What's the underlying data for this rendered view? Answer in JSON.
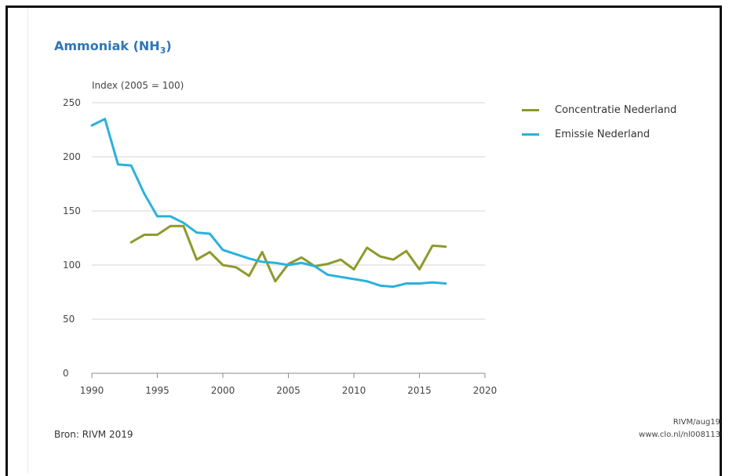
{
  "title": {
    "main": "Ammoniak (NH",
    "sub": "3",
    "close": ")"
  },
  "source_note": "Bron: RIVM 2019",
  "credit": {
    "line1": "RIVM/aug19",
    "line2": "www.clo.nl/nl008113"
  },
  "colors": {
    "concentratie": "#8d9a2b",
    "emissie": "#2bb1db",
    "grid": "#e3e3e3"
  },
  "chart_data": {
    "type": "line",
    "ylabel": "Index (2005 = 100)",
    "xlabel": "",
    "xlim": [
      1990,
      2020
    ],
    "ylim": [
      0,
      250
    ],
    "xticks": [
      1990,
      1995,
      2000,
      2005,
      2010,
      2015,
      2020
    ],
    "yticks": [
      0,
      50,
      100,
      150,
      200,
      250
    ],
    "grid": true,
    "legend_position": "right",
    "series": [
      {
        "name": "Concentratie Nederland",
        "color": "#8d9a2b",
        "x": [
          1993,
          1994,
          1995,
          1996,
          1997,
          1998,
          1999,
          2000,
          2001,
          2002,
          2003,
          2004,
          2005,
          2006,
          2007,
          2008,
          2009,
          2010,
          2011,
          2012,
          2013,
          2014,
          2015,
          2016,
          2017
        ],
        "y": [
          121,
          128,
          128,
          136,
          136,
          105,
          112,
          100,
          98,
          90,
          112,
          85,
          101,
          107,
          99,
          101,
          105,
          96,
          116,
          108,
          105,
          113,
          96,
          118,
          117
        ]
      },
      {
        "name": "Emissie Nederland",
        "color": "#2bb1db",
        "x": [
          1990,
          1991,
          1992,
          1993,
          1994,
          1995,
          1996,
          1997,
          1998,
          1999,
          2000,
          2001,
          2002,
          2003,
          2004,
          2005,
          2006,
          2007,
          2008,
          2009,
          2010,
          2011,
          2012,
          2013,
          2014,
          2015,
          2016,
          2017
        ],
        "y": [
          229,
          235,
          193,
          192,
          166,
          145,
          145,
          139,
          130,
          129,
          114,
          110,
          106,
          103,
          102,
          100,
          102,
          99,
          91,
          89,
          87,
          85,
          81,
          80,
          83,
          83,
          84,
          83
        ]
      }
    ]
  }
}
